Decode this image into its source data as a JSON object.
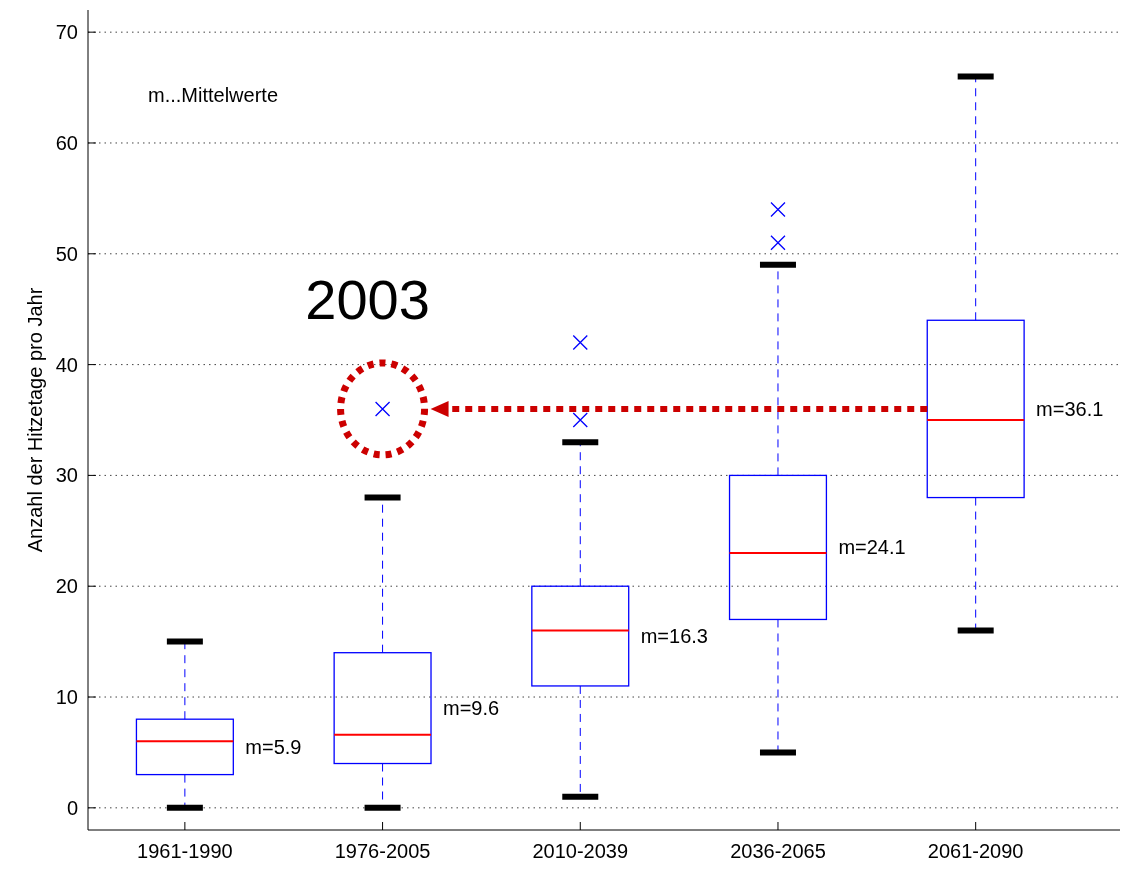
{
  "chart_data": {
    "type": "box",
    "ylabel": "Anzahl der Hitzetage pro Jahr",
    "categories": [
      "1961-1990",
      "1976-2005",
      "2010-2039",
      "2036-2065",
      "2061-2090"
    ],
    "color": "#0000ff",
    "marker": "cross",
    "boxes": [
      {
        "low": 0,
        "q1": 3,
        "median": 6,
        "q3": 8,
        "high": 15
      },
      {
        "low": 0,
        "q1": 4,
        "median": 6.6,
        "q3": 14,
        "high": 28,
        "outliers": [
          36
        ]
      },
      {
        "low": 1,
        "q1": 11,
        "median": 16,
        "q3": 20,
        "high": 33,
        "outliers": [
          35,
          42
        ]
      },
      {
        "low": 5,
        "q1": 17,
        "median": 23,
        "q3": 30,
        "high": 49,
        "outliers": [
          51,
          54
        ]
      },
      {
        "low": 16,
        "q1": 28,
        "median": 35,
        "q3": 44,
        "high": 66
      }
    ],
    "ylim": [
      -2,
      72
    ],
    "yticks": [
      0,
      10,
      20,
      30,
      40,
      50,
      60,
      70
    ],
    "grid": "y",
    "annotations": [
      "m...Mittelwerte",
      "2003",
      "m=5.9",
      "m=9.6",
      "m=16.3",
      "m=24.1",
      "m=36.1"
    ]
  }
}
